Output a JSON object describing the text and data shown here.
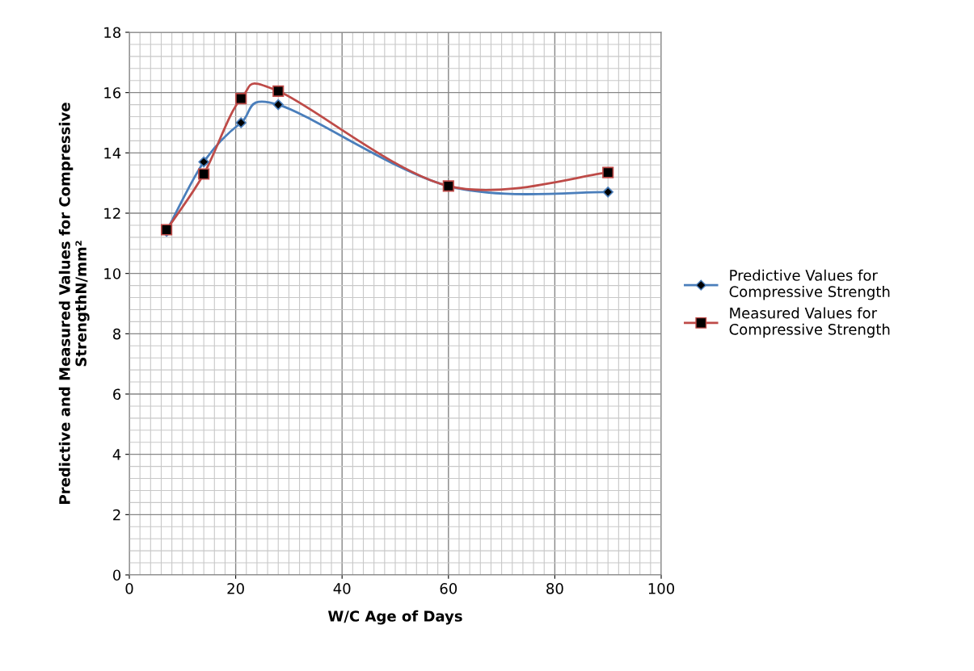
{
  "chart_data": {
    "type": "line",
    "xlabel": "W/C Age of Days",
    "ylabel": "Predictive and Measured Values for Compressive\nStrengthN/mm²",
    "x": [
      7,
      14,
      21,
      28,
      60,
      90
    ],
    "series": [
      {
        "name": "Predictive Values for\nCompressive Strength",
        "color": "#4a7ebb",
        "marker": "diamond",
        "values": [
          11.4,
          13.7,
          15.0,
          15.6,
          12.9,
          12.7
        ]
      },
      {
        "name": "Measured Values for\nCompressive Strength",
        "color": "#be4b48",
        "marker": "square",
        "values": [
          11.45,
          13.3,
          15.8,
          16.05,
          12.9,
          13.35
        ]
      }
    ],
    "xlim": [
      0,
      100
    ],
    "xticks": [
      0,
      20,
      40,
      60,
      80,
      100
    ],
    "ylim": [
      0,
      18
    ],
    "yticks": [
      0,
      2,
      4,
      6,
      8,
      10,
      12,
      14,
      16,
      18
    ],
    "grid": true,
    "legend": "right",
    "line_style": "solid"
  }
}
